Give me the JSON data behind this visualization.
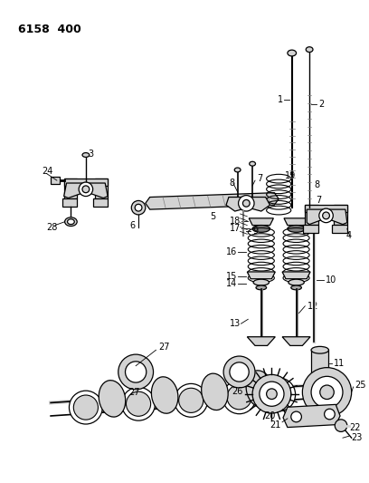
{
  "title": "6158  400",
  "background_color": "#ffffff",
  "line_color": "#000000",
  "fig_width": 4.08,
  "fig_height": 5.33,
  "dpi": 100
}
